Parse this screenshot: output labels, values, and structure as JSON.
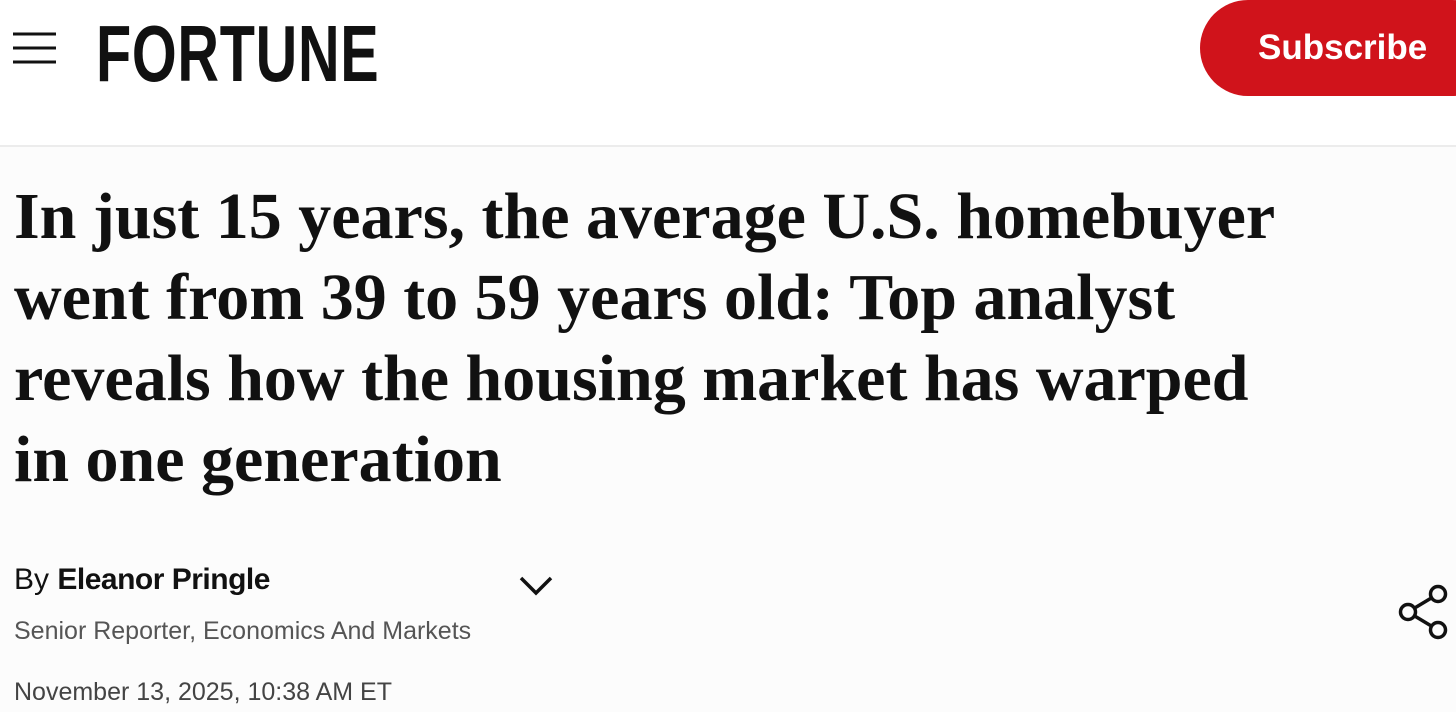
{
  "header": {
    "logo": "FORTUNE",
    "subscribe": "Subscribe"
  },
  "article": {
    "headline_lines": [
      "In just 15 years, the average U.S. homebuyer",
      "went from 39 to 59 years old: Top analyst",
      "reveals how the housing market has warped",
      "in one generation"
    ],
    "byline_prefix": "By",
    "author": "Eleanor Pringle",
    "author_title": "Senior Reporter, Economics And Markets",
    "date": "November 13, 2025, 10:38 AM ET"
  }
}
